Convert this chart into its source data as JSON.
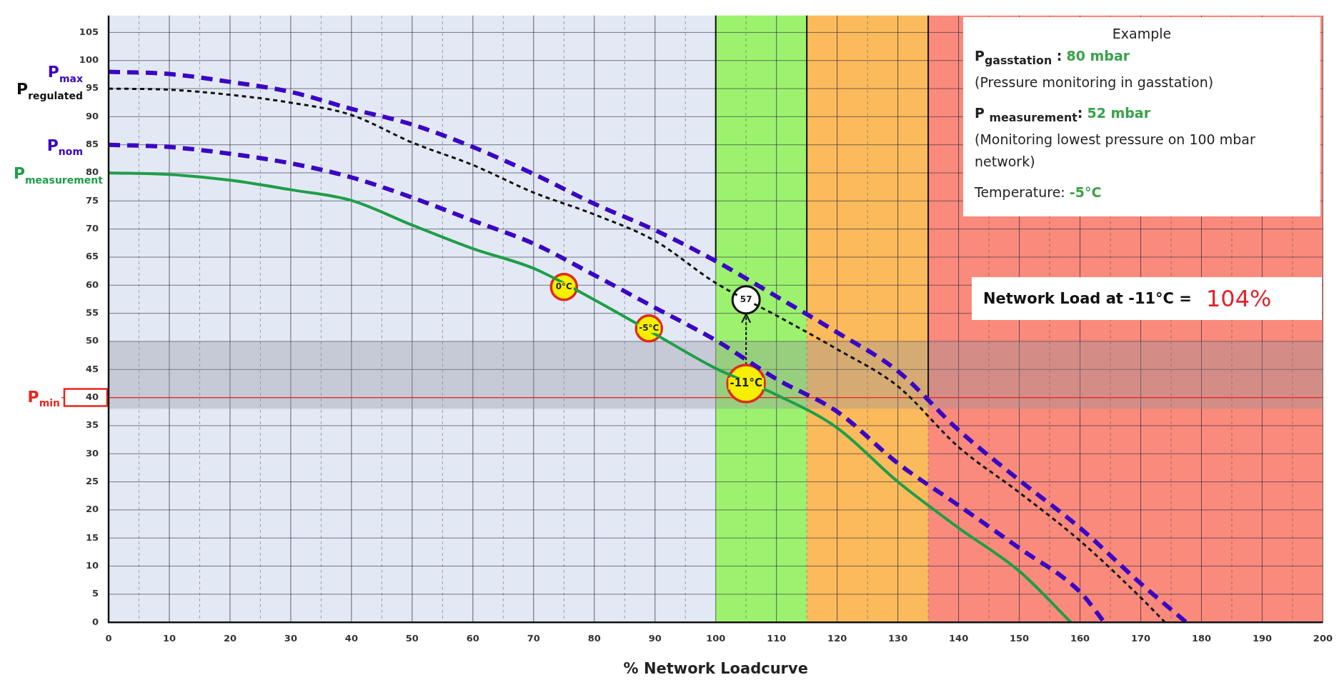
{
  "chart_data": {
    "type": "line",
    "xlabel": "% Network Loadcurve",
    "xlim": [
      0,
      200
    ],
    "ylim": [
      0,
      108
    ],
    "xticks": [
      0,
      {
        "value": 5,
        "label": null
      },
      10,
      {
        "value": 15,
        "label": null
      },
      20,
      {
        "value": 25,
        "label": null
      },
      30,
      {
        "value": 35,
        "label": null
      },
      40,
      {
        "value": 45,
        "label": null
      },
      50,
      {
        "value": 55,
        "label": null
      },
      60,
      {
        "value": 65,
        "label": null
      },
      70,
      {
        "value": 75,
        "label": null
      },
      80,
      {
        "value": 85,
        "label": null
      },
      90,
      {
        "value": 95,
        "label": null
      },
      100,
      {
        "value": 105,
        "label": null
      },
      110,
      {
        "value": 115,
        "label": null
      },
      120,
      {
        "value": 125,
        "label": null
      },
      130,
      {
        "value": 135,
        "label": null
      },
      140,
      {
        "value": 145,
        "label": null
      },
      150,
      {
        "value": 155,
        "label": null
      },
      160,
      {
        "value": 165,
        "label": null
      },
      170,
      {
        "value": 175,
        "label": null
      },
      180,
      {
        "value": 185,
        "label": null
      },
      190,
      {
        "value": 195,
        "label": null
      },
      200
    ],
    "yticks": [
      0,
      5,
      10,
      15,
      20,
      25,
      30,
      35,
      40,
      45,
      50,
      55,
      60,
      65,
      70,
      75,
      80,
      85,
      90,
      95,
      100,
      105
    ],
    "grid": true,
    "legend": false,
    "marker": "none",
    "series": [
      {
        "name": "P$_{max}$",
        "color": "#3b05c4",
        "line_style": "dashed",
        "x": [
          0,
          10,
          20,
          30,
          40,
          50,
          60,
          70,
          80,
          90,
          100,
          110,
          120,
          130,
          140,
          150,
          160,
          170,
          177.5
        ],
        "values": [
          98,
          97.6,
          96.2,
          94.4,
          91.4,
          88.6,
          84.6,
          79.8,
          74.5,
          69.8,
          64.3,
          58,
          51.6,
          44.7,
          34.2,
          25.3,
          16.8,
          6.9,
          0
        ]
      },
      {
        "name": "P$_{regulated}$",
        "color": "#111111",
        "line_style": "dashed",
        "x": [
          0,
          10,
          20,
          30,
          40,
          50,
          60,
          70,
          80,
          90,
          100,
          110,
          120,
          130,
          140,
          150,
          160,
          170,
          174
        ],
        "values": [
          95,
          94.8,
          93.9,
          92.5,
          90.3,
          85.4,
          81.4,
          76.5,
          72.6,
          67.9,
          60.4,
          54.6,
          48.6,
          42,
          31.2,
          23.1,
          14.5,
          4.4,
          0
        ]
      },
      {
        "name": "P$_{nom}$",
        "color": "#3b05c4",
        "line_style": "dashed",
        "x": [
          0,
          10,
          20,
          30,
          40,
          50,
          60,
          70,
          80,
          90,
          100,
          110,
          120,
          130,
          140,
          150,
          160,
          164
        ],
        "values": [
          85,
          84.6,
          83.4,
          81.7,
          79.2,
          75.6,
          71.5,
          67.4,
          61.8,
          56,
          50.2,
          43.3,
          37.5,
          28.3,
          20.8,
          13.2,
          5.4,
          0
        ]
      },
      {
        "name": "P$_{measurement}$",
        "color": "#1e9e48",
        "line_style": "solid",
        "x": [
          0,
          10,
          20,
          30,
          40,
          50,
          60,
          70,
          80,
          90,
          100,
          110,
          120,
          130,
          140,
          150,
          158.5
        ],
        "values": [
          80,
          79.7,
          78.7,
          77,
          75.1,
          70.7,
          66.5,
          63,
          57.4,
          51.3,
          45.2,
          40.5,
          34.6,
          25,
          16.8,
          9.1,
          0
        ]
      }
    ],
    "bands": [
      {
        "axis": "x",
        "from": 0,
        "to": 100,
        "color": "#e3e9f4"
      },
      {
        "axis": "x",
        "from": 100,
        "to": 115,
        "color": "#9cf26e"
      },
      {
        "axis": "x",
        "from": 115,
        "to": 135,
        "color": "#fbba5c"
      },
      {
        "axis": "x",
        "from": 135,
        "to": 200,
        "color": "#f98a7c"
      },
      {
        "axis": "y",
        "from": 38,
        "to": 50,
        "color": "#8e8e9e"
      }
    ],
    "ref_lines": [
      {
        "axis": "x",
        "value": 100,
        "color": "#111111"
      },
      {
        "axis": "x",
        "value": 115,
        "color": "#111111"
      },
      {
        "axis": "x",
        "value": 135,
        "color": "#111111"
      },
      {
        "axis": "y",
        "value": 40,
        "label": "P$_{min}$",
        "color": "#e8261c"
      }
    ],
    "annotations": [
      "Example",
      "P$_{gasstation}$ :",
      "80 mbar",
      "(Pressure  monitoring in gasstation)",
      "P $_{measurement}$:",
      "52 mbar",
      "(Monitoring lowest pressure on 100 mbar network)",
      "Temperature:",
      "-5°C",
      "Network Load at -11°C =",
      "104%",
      {
        "text": "0°C",
        "x": 75,
        "y": 59.7
      },
      {
        "text": "-5°C",
        "x": 89,
        "y": 52.3
      },
      {
        "text": "-11°C",
        "x": 105,
        "y": 42.5
      },
      {
        "text": "57",
        "x": 105,
        "y": 57.4
      }
    ]
  }
}
